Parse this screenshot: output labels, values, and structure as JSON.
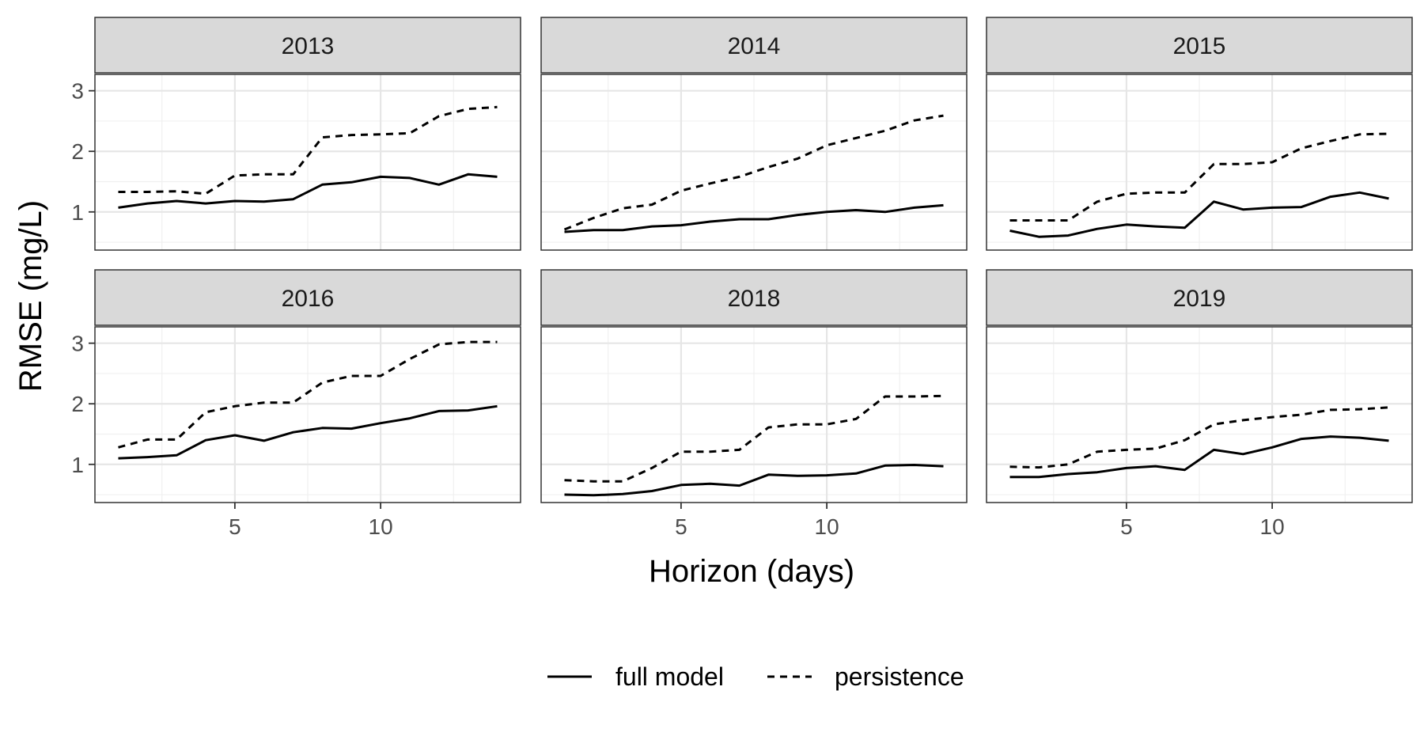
{
  "chart_data": {
    "type": "line",
    "title": "",
    "xlabel": "Horizon (days)",
    "ylabel": "RMSE (mg/L)",
    "x": [
      1,
      2,
      3,
      4,
      5,
      6,
      7,
      8,
      9,
      10,
      11,
      12,
      13,
      14
    ],
    "xlim": [
      0.2,
      14.8
    ],
    "ylim": [
      0.37,
      3.27
    ],
    "x_ticks": [
      5,
      10
    ],
    "y_ticks": [
      1,
      2,
      3
    ],
    "grid": true,
    "legend_position": "bottom",
    "line_color": "#000000",
    "strip_fill": "#d9d9d9",
    "series_styles": {
      "full model": "solid",
      "persistence": "dashed"
    },
    "legend": [
      "full model",
      "persistence"
    ],
    "panels": [
      {
        "label": "2013",
        "series": [
          {
            "name": "full model",
            "values": [
              1.07,
              1.14,
              1.18,
              1.14,
              1.18,
              1.17,
              1.21,
              1.45,
              1.49,
              1.58,
              1.56,
              1.45,
              1.62,
              1.58
            ]
          },
          {
            "name": "persistence",
            "values": [
              1.33,
              1.33,
              1.34,
              1.3,
              1.6,
              1.62,
              1.62,
              2.23,
              2.27,
              2.28,
              2.3,
              2.58,
              2.7,
              2.73
            ]
          }
        ]
      },
      {
        "label": "2014",
        "series": [
          {
            "name": "full model",
            "values": [
              0.67,
              0.7,
              0.7,
              0.76,
              0.78,
              0.84,
              0.88,
              0.88,
              0.95,
              1.0,
              1.03,
              1.0,
              1.07,
              1.11
            ]
          },
          {
            "name": "persistence",
            "values": [
              0.71,
              0.9,
              1.06,
              1.12,
              1.35,
              1.47,
              1.58,
              1.74,
              1.88,
              2.1,
              2.22,
              2.34,
              2.51,
              2.59
            ]
          }
        ]
      },
      {
        "label": "2015",
        "series": [
          {
            "name": "full model",
            "values": [
              0.69,
              0.59,
              0.61,
              0.72,
              0.79,
              0.76,
              0.74,
              1.17,
              1.04,
              1.07,
              1.08,
              1.25,
              1.32,
              1.22
            ]
          },
          {
            "name": "persistence",
            "values": [
              0.86,
              0.86,
              0.86,
              1.17,
              1.3,
              1.32,
              1.32,
              1.79,
              1.79,
              1.82,
              2.05,
              2.17,
              2.28,
              2.29
            ]
          }
        ]
      },
      {
        "label": "2016",
        "series": [
          {
            "name": "full model",
            "values": [
              1.1,
              1.12,
              1.15,
              1.4,
              1.48,
              1.39,
              1.53,
              1.6,
              1.59,
              1.68,
              1.76,
              1.88,
              1.89,
              1.96
            ]
          },
          {
            "name": "persistence",
            "values": [
              1.28,
              1.41,
              1.41,
              1.86,
              1.96,
              2.02,
              2.02,
              2.35,
              2.46,
              2.46,
              2.74,
              2.98,
              3.02,
              3.02
            ]
          }
        ]
      },
      {
        "label": "2018",
        "series": [
          {
            "name": "full model",
            "values": [
              0.5,
              0.49,
              0.51,
              0.56,
              0.66,
              0.68,
              0.65,
              0.83,
              0.81,
              0.82,
              0.85,
              0.98,
              0.99,
              0.97
            ]
          },
          {
            "name": "persistence",
            "values": [
              0.74,
              0.72,
              0.72,
              0.94,
              1.21,
              1.21,
              1.24,
              1.61,
              1.66,
              1.66,
              1.75,
              2.12,
              2.12,
              2.13
            ]
          }
        ]
      },
      {
        "label": "2019",
        "series": [
          {
            "name": "full model",
            "values": [
              0.79,
              0.79,
              0.84,
              0.87,
              0.94,
              0.97,
              0.91,
              1.24,
              1.17,
              1.28,
              1.42,
              1.46,
              1.44,
              1.39
            ]
          },
          {
            "name": "persistence",
            "values": [
              0.96,
              0.95,
              1.0,
              1.21,
              1.24,
              1.26,
              1.4,
              1.66,
              1.73,
              1.78,
              1.82,
              1.9,
              1.91,
              1.94
            ]
          }
        ]
      }
    ]
  }
}
